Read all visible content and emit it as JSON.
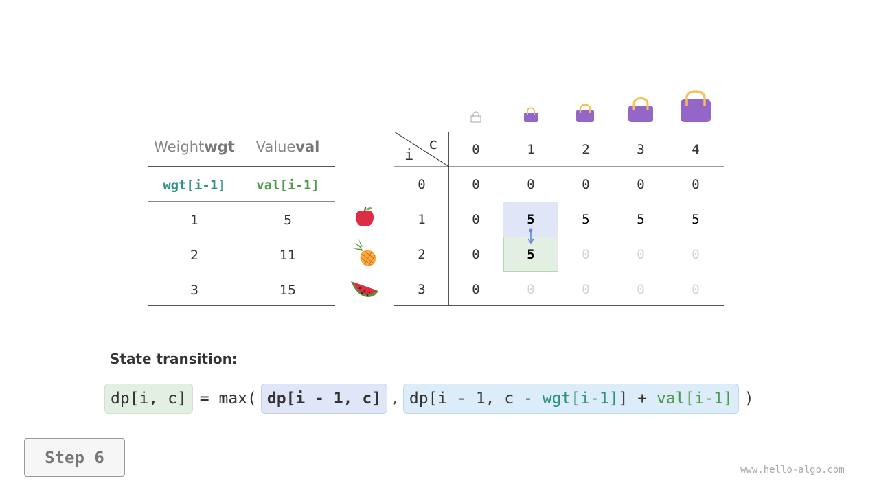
{
  "left_table": {
    "headers": [
      {
        "plain": "Weight ",
        "bold": "wgt"
      },
      {
        "plain": "Value ",
        "bold": "val"
      }
    ],
    "subheaders": [
      "wgt[i-1]",
      "val[i-1]"
    ],
    "rows": [
      [
        "1",
        "5"
      ],
      [
        "2",
        "11"
      ],
      [
        "3",
        "15"
      ]
    ],
    "item_icons": [
      "apple-icon",
      "pineapple-icon",
      "watermelon-icon"
    ]
  },
  "dp_table": {
    "corner_col": "c",
    "corner_row": "i",
    "col_headers": [
      "0",
      "1",
      "2",
      "3",
      "4"
    ],
    "row_headers": [
      "0",
      "1",
      "2",
      "3"
    ],
    "rows": [
      [
        "0",
        "0",
        "0",
        "0",
        "0"
      ],
      [
        "0",
        "5",
        "5",
        "5",
        "5"
      ],
      [
        "0",
        "5",
        "0",
        "0",
        "0"
      ],
      [
        "0",
        "0",
        "0",
        "0",
        "0"
      ]
    ],
    "bag_icons": [
      "empty-bag-icon",
      "bag-icon",
      "bag-icon",
      "bag-icon",
      "bag-icon"
    ]
  },
  "formula": {
    "title": "State transition:",
    "lhs": "dp[i, c]",
    "eq": "= max(",
    "arg1": "dp[i - 1, c]",
    "comma": ",",
    "arg2_a": "dp[i - 1, c - ",
    "arg2_wgt": "wgt[i-1]",
    "arg2_b": "] + ",
    "arg2_val": "val[i-1]",
    "close": ")"
  },
  "step_label": "Step 6",
  "watermark": "www.hello-algo.com",
  "colors": {
    "wgt": "#2f9186",
    "val": "#4c9a4c",
    "bag": "#9466c8",
    "handle": "#f5c15a",
    "current_cell": "#e3efe2",
    "source_cell": "#e0e5f7",
    "arrow": "#6a86dc"
  }
}
